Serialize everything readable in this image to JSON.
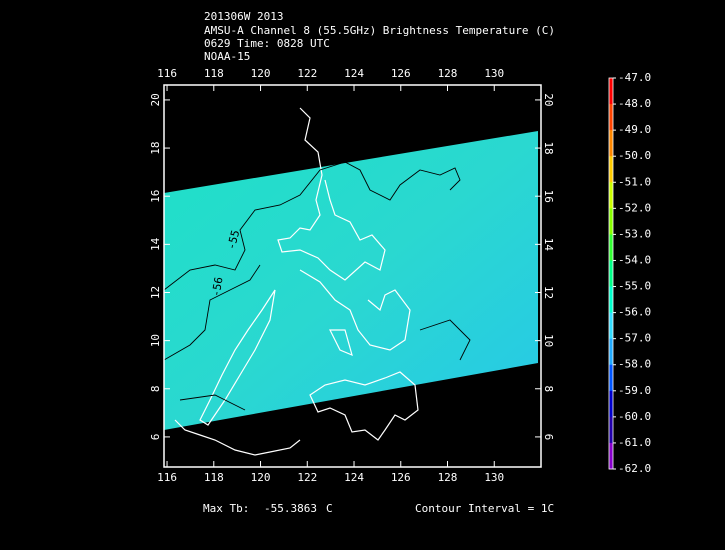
{
  "header": {
    "lines": [
      "201306W 2013",
      "AMSU-A Channel 8 (55.5GHz) Brightness Temperature (C)",
      "0629 Time: 0828 UTC",
      "NOAA-15"
    ]
  },
  "map": {
    "xlim": [
      115.87,
      132.0
    ],
    "ylim": [
      4.75,
      20.62
    ],
    "xticks": [
      116,
      118,
      120,
      122,
      124,
      126,
      128,
      130
    ],
    "yticks": [
      6,
      8,
      10,
      12,
      14,
      16,
      18,
      20
    ],
    "contour_labels": [
      "-55",
      "-56"
    ]
  },
  "colorbar": {
    "labels": [
      "-47.0",
      "-48.0",
      "-49.0",
      "-50.0",
      "-51.0",
      "-52.0",
      "-53.0",
      "-54.0",
      "-55.0",
      "-56.0",
      "-57.0",
      "-58.0",
      "-59.0",
      "-60.0",
      "-61.0",
      "-62.0"
    ],
    "colors": [
      "#ff0000",
      "#ff4400",
      "#ff8800",
      "#ffcc00",
      "#ccff00",
      "#88ff00",
      "#33ff33",
      "#00ff88",
      "#00ffcc",
      "#33ddff",
      "#22aaff",
      "#0055ff",
      "#0000cc",
      "#2200aa",
      "#8800cc",
      "#ffffff"
    ]
  },
  "footer": {
    "max_label": "Max Tb:",
    "max_value": "-55.3863",
    "unit": "C",
    "contour_interval": "Contour Interval = 1C"
  }
}
